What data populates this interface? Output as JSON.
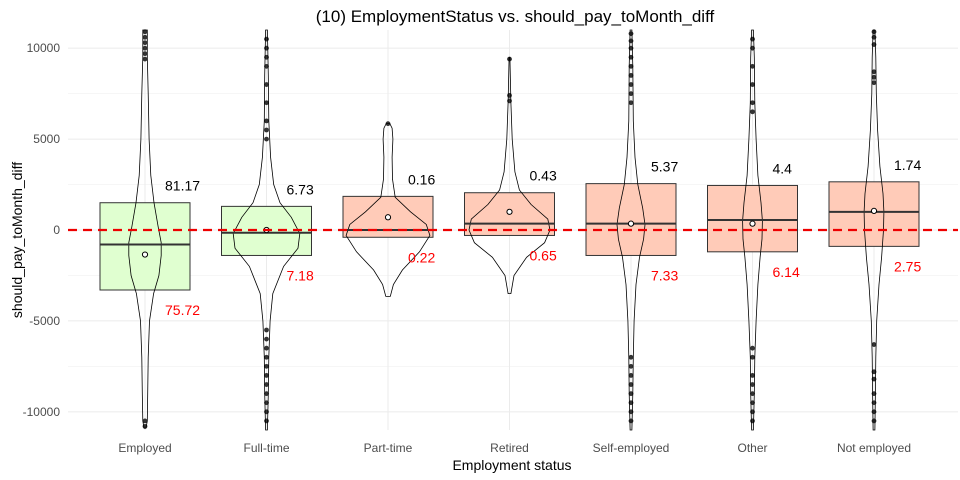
{
  "chart_data": {
    "type": "box",
    "title": "(10) EmploymentStatus vs. should_pay_toMonth_diff",
    "xlabel": "Employment status",
    "ylabel": "should_pay_toMonth_diff",
    "ylim": [
      -11000,
      11000
    ],
    "yticks": [
      -10000,
      -5000,
      0,
      5000,
      10000
    ],
    "yticklabels": [
      "-10000",
      "-5000",
      "0",
      "5000",
      "10000"
    ],
    "reference_line": {
      "y": 0,
      "color": "#ee0000",
      "style": "dashed"
    },
    "grid": true,
    "colors": {
      "green_fill": "#e0ffd0",
      "salmon_fill": "#ffcbb8",
      "box_stroke": "#333333"
    },
    "categories": [
      "Employed",
      "Full-time",
      "Part-time",
      "Retired",
      "Self-employed",
      "Other",
      "Not employed"
    ],
    "groups": [
      {
        "category": "Employed",
        "fill": "green",
        "q1": -3300,
        "median": -800,
        "q3": 1500,
        "mean": -1350,
        "violin_min": -10900,
        "violin_max": 11000,
        "violin": [
          [
            -10900,
            0.02
          ],
          [
            -10500,
            0.05
          ],
          [
            -9000,
            0.06
          ],
          [
            -7000,
            0.07
          ],
          [
            -5000,
            0.1
          ],
          [
            -3500,
            0.19
          ],
          [
            -2500,
            0.31
          ],
          [
            -1400,
            0.36
          ],
          [
            -700,
            0.36
          ],
          [
            200,
            0.29
          ],
          [
            1500,
            0.2
          ],
          [
            3000,
            0.13
          ],
          [
            5000,
            0.09
          ],
          [
            7500,
            0.07
          ],
          [
            9500,
            0.05
          ],
          [
            11000,
            0.05
          ]
        ],
        "outliers": [
          10000,
          10300,
          10600,
          10900,
          9400,
          9700,
          -10500,
          -10800
        ],
        "top_label": "81.17",
        "bottom_label": "75.72"
      },
      {
        "category": "Full-time",
        "fill": "green",
        "q1": -1400,
        "median": -150,
        "q3": 1300,
        "mean": 0,
        "violin_min": -11000,
        "violin_max": 11000,
        "violin": [
          [
            -11000,
            0.02
          ],
          [
            -9000,
            0.04
          ],
          [
            -7000,
            0.05
          ],
          [
            -5000,
            0.08
          ],
          [
            -3500,
            0.14
          ],
          [
            -2000,
            0.38
          ],
          [
            -1000,
            0.7
          ],
          [
            -200,
            0.74
          ],
          [
            700,
            0.55
          ],
          [
            1500,
            0.3
          ],
          [
            2500,
            0.16
          ],
          [
            4000,
            0.09
          ],
          [
            6000,
            0.05
          ],
          [
            8500,
            0.04
          ],
          [
            11000,
            0.02
          ]
        ],
        "outliers": [
          10500,
          10000,
          9500,
          9000,
          8000,
          7000,
          6000,
          5500,
          5000,
          -5500,
          -6000,
          -6500,
          -7000,
          -7500,
          -8000,
          -8500,
          -9000,
          -9500,
          -10000,
          -10500
        ],
        "top_label": "6.73",
        "bottom_label": "7.18"
      },
      {
        "category": "Part-time",
        "fill": "salmon",
        "q1": -400,
        "median": 0,
        "q3": 1850,
        "mean": 700,
        "violin_min": -3650,
        "violin_max": 5850,
        "violin": [
          [
            -3650,
            0.05
          ],
          [
            -3000,
            0.12
          ],
          [
            -2200,
            0.32
          ],
          [
            -1200,
            0.7
          ],
          [
            -300,
            0.93
          ],
          [
            300,
            0.85
          ],
          [
            1000,
            0.5
          ],
          [
            1800,
            0.16
          ],
          [
            2800,
            0.1
          ],
          [
            4000,
            0.09
          ],
          [
            5000,
            0.11
          ],
          [
            5600,
            0.09
          ],
          [
            5850,
            0.04
          ]
        ],
        "outliers": [
          5850
        ],
        "top_label": "0.16",
        "bottom_label": "0.22"
      },
      {
        "category": "Retired",
        "fill": "salmon",
        "q1": -300,
        "median": 350,
        "q3": 2050,
        "mean": 1000,
        "violin_min": -3500,
        "violin_max": 9500,
        "violin": [
          [
            -3500,
            0.03
          ],
          [
            -2500,
            0.1
          ],
          [
            -1500,
            0.38
          ],
          [
            -700,
            0.78
          ],
          [
            0,
            0.9
          ],
          [
            600,
            0.85
          ],
          [
            1400,
            0.48
          ],
          [
            2200,
            0.22
          ],
          [
            3200,
            0.12
          ],
          [
            5000,
            0.06
          ],
          [
            7000,
            0.03
          ],
          [
            9500,
            0.01
          ]
        ],
        "outliers": [
          9400,
          7400,
          7100
        ],
        "top_label": "0.43",
        "bottom_label": "0.65"
      },
      {
        "category": "Self-employed",
        "fill": "salmon",
        "q1": -1400,
        "median": 350,
        "q3": 2550,
        "mean": 350,
        "violin_min": -11000,
        "violin_max": 11000,
        "violin": [
          [
            -11000,
            0.02
          ],
          [
            -9000,
            0.04
          ],
          [
            -7000,
            0.05
          ],
          [
            -5000,
            0.07
          ],
          [
            -3000,
            0.11
          ],
          [
            -1500,
            0.19
          ],
          [
            -500,
            0.28
          ],
          [
            300,
            0.31
          ],
          [
            1200,
            0.26
          ],
          [
            2500,
            0.15
          ],
          [
            4000,
            0.09
          ],
          [
            6000,
            0.05
          ],
          [
            9000,
            0.04
          ],
          [
            11000,
            0.02
          ]
        ],
        "outliers": [
          10800,
          10400,
          10000,
          9500,
          9000,
          8500,
          8000,
          7500,
          7000,
          -7000,
          -7500,
          -8000,
          -8500,
          -9000,
          -9500,
          -10000,
          -10500
        ],
        "top_label": "5.37",
        "bottom_label": "7.33"
      },
      {
        "category": "Other",
        "fill": "salmon",
        "q1": -1200,
        "median": 550,
        "q3": 2450,
        "mean": 350,
        "violin_min": -11000,
        "violin_max": 11000,
        "violin": [
          [
            -11000,
            0.02
          ],
          [
            -9000,
            0.04
          ],
          [
            -7000,
            0.05
          ],
          [
            -5000,
            0.08
          ],
          [
            -3000,
            0.12
          ],
          [
            -1500,
            0.17
          ],
          [
            -500,
            0.21
          ],
          [
            500,
            0.22
          ],
          [
            1500,
            0.19
          ],
          [
            3000,
            0.12
          ],
          [
            5000,
            0.08
          ],
          [
            7000,
            0.05
          ],
          [
            9500,
            0.04
          ],
          [
            11000,
            0.02
          ]
        ],
        "outliers": [
          10500,
          10000,
          9000,
          8000,
          7000,
          6500,
          -6500,
          -7000,
          -8000,
          -8500,
          -9000,
          -9500,
          -10000,
          -10500
        ],
        "top_label": "4.4",
        "bottom_label": "6.14"
      },
      {
        "category": "Not employed",
        "fill": "salmon",
        "q1": -900,
        "median": 1000,
        "q3": 2650,
        "mean": 1050,
        "violin_min": -11000,
        "violin_max": 11000,
        "violin": [
          [
            -11000,
            0.02
          ],
          [
            -9000,
            0.03
          ],
          [
            -7000,
            0.04
          ],
          [
            -5000,
            0.06
          ],
          [
            -3000,
            0.11
          ],
          [
            -1500,
            0.17
          ],
          [
            0,
            0.21
          ],
          [
            1000,
            0.22
          ],
          [
            2000,
            0.2
          ],
          [
            3500,
            0.13
          ],
          [
            5500,
            0.08
          ],
          [
            7500,
            0.05
          ],
          [
            9500,
            0.04
          ],
          [
            11000,
            0.02
          ]
        ],
        "outliers": [
          10900,
          10600,
          10200,
          8700,
          8400,
          8100,
          -6300,
          -7800,
          -8200,
          -9000,
          -9500,
          -10000,
          -10500
        ],
        "top_label": "1.74",
        "bottom_label": "2.75"
      }
    ]
  }
}
